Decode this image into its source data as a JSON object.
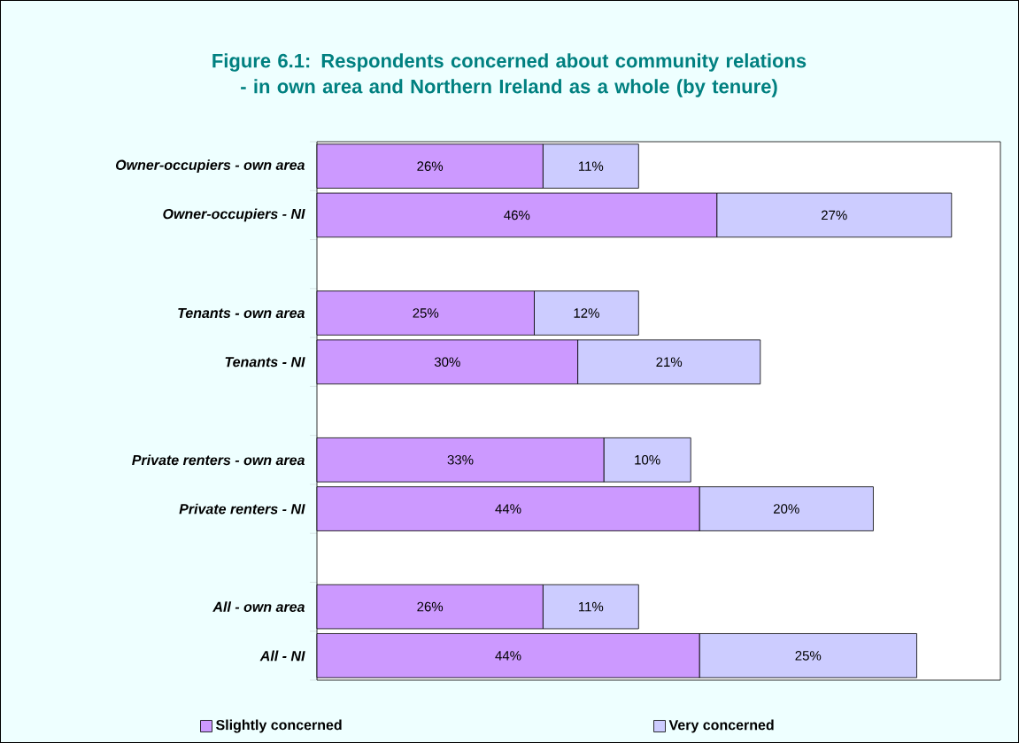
{
  "chart_data": {
    "type": "bar",
    "orientation": "horizontal",
    "stacked": true,
    "title": "Figure 6.1: Respondents concerned about community relations - in own area and Northern Ireland as a whole (by tenure)",
    "categories": [
      "Owner-occupiers - own area",
      "Owner-occupiers - NI",
      null,
      "Tenants - own area",
      "Tenants - NI",
      null,
      "Private renters - own area",
      "Private renters - NI",
      null,
      "All - own area",
      "All - NI"
    ],
    "series": [
      {
        "name": "Slightly concerned",
        "color": "#cc99ff",
        "values": [
          26,
          46,
          null,
          25,
          30,
          null,
          33,
          44,
          null,
          26,
          44
        ],
        "value_labels": [
          "26%",
          "46%",
          null,
          "25%",
          "30%",
          null,
          "33%",
          "44%",
          null,
          "26%",
          "44%"
        ]
      },
      {
        "name": "Very concerned",
        "color": "#ccccff",
        "values": [
          11,
          27,
          null,
          12,
          21,
          null,
          10,
          20,
          null,
          11,
          25
        ],
        "value_labels": [
          "11%",
          "27%",
          null,
          "12%",
          "21%",
          null,
          "10%",
          "20%",
          null,
          "11%",
          "25%"
        ]
      }
    ],
    "legend": "bottom"
  }
}
